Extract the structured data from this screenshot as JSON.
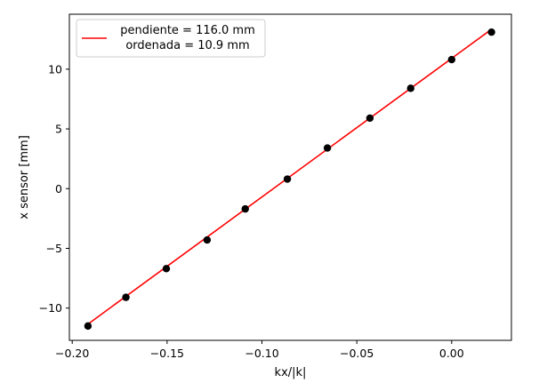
{
  "chart_data": {
    "type": "scatter",
    "title": "",
    "xlabel": "kx/|k|",
    "ylabel": "x sensor [mm]",
    "xlim": [
      -0.2015,
      0.0315
    ],
    "ylim": [
      -12.7,
      14.6
    ],
    "x_ticks": [
      -0.2,
      -0.15,
      -0.1,
      -0.05,
      0.0
    ],
    "x_tick_labels": [
      "−0.20",
      "−0.15",
      "−0.10",
      "−0.05",
      "0.00"
    ],
    "y_ticks": [
      -10,
      -5,
      0,
      5,
      10
    ],
    "y_tick_labels": [
      "−10",
      "−5",
      "0",
      "5",
      "10"
    ],
    "grid": false,
    "legend_position": "top-left",
    "series": [
      {
        "kind": "scatter",
        "color": "#000000",
        "points": [
          {
            "x": -0.1917,
            "y": -11.5
          },
          {
            "x": -0.1717,
            "y": -9.1
          },
          {
            "x": -0.1504,
            "y": -6.7
          },
          {
            "x": -0.1289,
            "y": -4.3
          },
          {
            "x": -0.1088,
            "y": -1.7
          },
          {
            "x": -0.0866,
            "y": 0.8
          },
          {
            "x": -0.0655,
            "y": 3.4
          },
          {
            "x": -0.0431,
            "y": 5.9
          },
          {
            "x": -0.0216,
            "y": 8.4
          },
          {
            "x": 0.0,
            "y": 10.8
          },
          {
            "x": 0.021,
            "y": 13.1
          }
        ]
      },
      {
        "kind": "line",
        "color": "#ff0000",
        "x": [
          -0.1917,
          0.021
        ],
        "y": [
          -11.34,
          13.34
        ],
        "legend_lines": [
          "pendiente = 116.0 mm",
          "ordenada = 10.9 mm"
        ]
      }
    ]
  }
}
